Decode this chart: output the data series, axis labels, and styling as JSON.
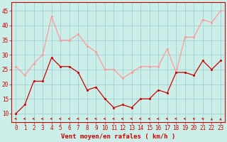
{
  "x": [
    0,
    1,
    2,
    3,
    4,
    5,
    6,
    7,
    8,
    9,
    10,
    11,
    12,
    13,
    14,
    15,
    16,
    17,
    18,
    19,
    20,
    21,
    22,
    23
  ],
  "wind_avg": [
    10,
    13,
    21,
    21,
    29,
    26,
    26,
    24,
    18,
    19,
    15,
    12,
    13,
    12,
    15,
    15,
    18,
    17,
    24,
    24,
    23,
    28,
    25,
    28
  ],
  "wind_gust": [
    26,
    23,
    27,
    30,
    43,
    35,
    35,
    37,
    33,
    31,
    25,
    25,
    22,
    24,
    26,
    26,
    26,
    32,
    24,
    36,
    36,
    42,
    41,
    45
  ],
  "wind_dir_deg": [
    270,
    270,
    270,
    270,
    270,
    270,
    270,
    270,
    270,
    270,
    270,
    270,
    270,
    270,
    270,
    270,
    270,
    270,
    270,
    270,
    315,
    315,
    360,
    360
  ],
  "xlabel": "Vent moyen/en rafales ( km/h )",
  "ylim": [
    7,
    48
  ],
  "yticks": [
    10,
    15,
    20,
    25,
    30,
    35,
    40,
    45
  ],
  "xticks": [
    0,
    1,
    2,
    3,
    4,
    5,
    6,
    7,
    8,
    9,
    10,
    11,
    12,
    13,
    14,
    15,
    16,
    17,
    18,
    19,
    20,
    21,
    22,
    23
  ],
  "color_avg": "#cc0000",
  "color_gust": "#ff9999",
  "bg_color": "#cceee8",
  "grid_color": "#99cccc",
  "axis_color": "#cc0000",
  "label_color": "#cc0000",
  "tick_fontsize": 5.5,
  "xlabel_fontsize": 6.5
}
